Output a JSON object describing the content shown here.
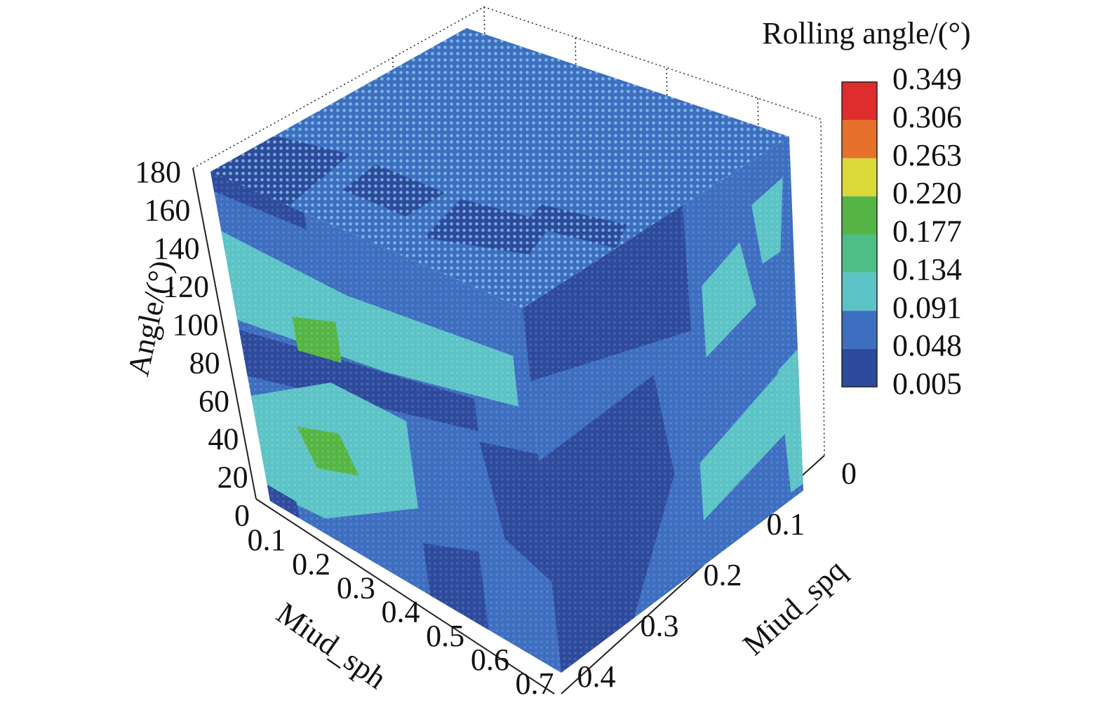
{
  "chart_data": {
    "type": "voxel-cube",
    "zlabel": "Angle/(°)",
    "zlim": [
      0,
      180
    ],
    "zticks": [
      0,
      20,
      40,
      60,
      80,
      100,
      120,
      140,
      160,
      180
    ],
    "xlabel": "Miud_sph",
    "xlim": [
      0.1,
      0.7
    ],
    "xticks": [
      0.1,
      0.2,
      0.3,
      0.4,
      0.5,
      0.6,
      0.7
    ],
    "ylabel": "Miud_spq",
    "ylim": [
      0,
      0.4
    ],
    "yticks": [
      0,
      0.1,
      0.2,
      0.3,
      0.4
    ],
    "colorbar": {
      "title": "Rolling angle/(°)",
      "lim": [
        0.005,
        0.349
      ],
      "ticks": [
        0.005,
        0.048,
        0.091,
        0.134,
        0.177,
        {
          "value": 0.22,
          "label": "0.220"
        },
        0.263,
        0.306,
        0.349
      ],
      "colors": [
        "#2d4a9c",
        "#3d6ec0",
        "#5cc3c6",
        "#4fbd86",
        "#55b544",
        "#dbd93a",
        "#e6712c",
        "#df2c2c"
      ]
    }
  }
}
